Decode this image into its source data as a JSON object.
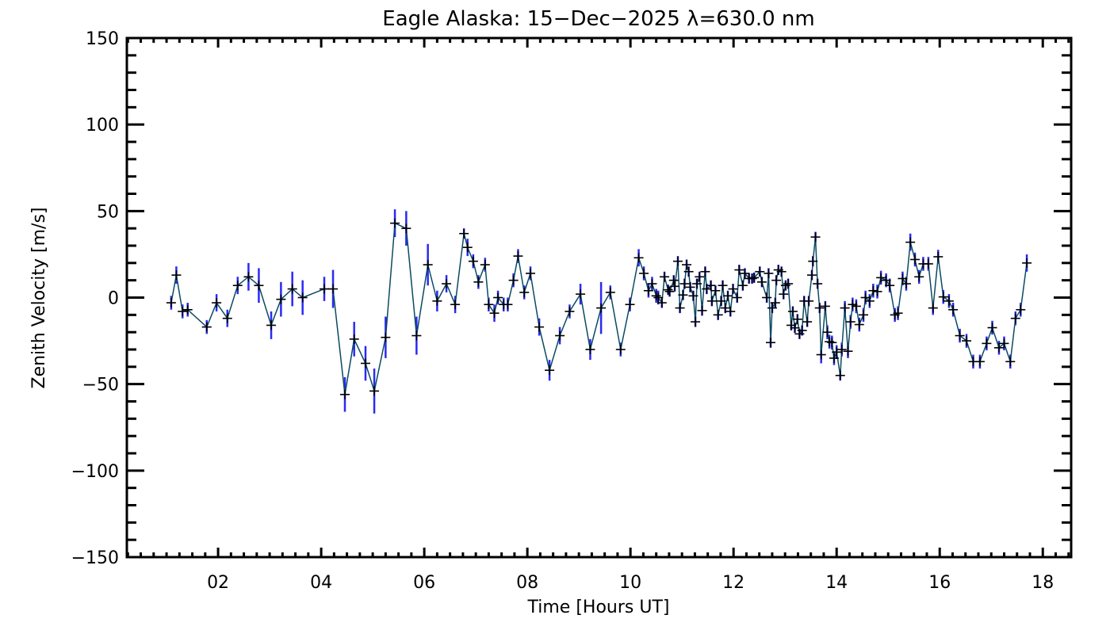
{
  "chart_data": {
    "type": "line",
    "title": "Eagle Alaska: 15−Dec−2025 λ=630.0 nm",
    "xlabel": "Time [Hours UT]",
    "ylabel": "Zenith Velocity [m/s]",
    "xlim": [
      0.23,
      18.55
    ],
    "ylim": [
      -150,
      150
    ],
    "x_ticks": [
      2,
      4,
      6,
      8,
      10,
      12,
      14,
      16,
      18
    ],
    "x_tick_labels": [
      "02",
      "04",
      "06",
      "08",
      "10",
      "12",
      "14",
      "16",
      "18"
    ],
    "x_minor_step": 0.25,
    "y_ticks": [
      -150,
      -100,
      -50,
      0,
      50,
      100,
      150
    ],
    "y_tick_labels": [
      "−150",
      "−100",
      "−50",
      "0",
      "50",
      "100",
      "150"
    ],
    "y_minor_step": 10,
    "grid": false,
    "colors": {
      "line": "#0b4a62",
      "errorbar": "#2a2af5",
      "marker": "#000000",
      "axis": "#000000"
    },
    "series": [
      {
        "name": "Zenith Velocity",
        "columns": [
          "time_h",
          "velocity_ms",
          "error_ms"
        ],
        "points": [
          [
            1.09,
            -3,
            4
          ],
          [
            1.19,
            13,
            5
          ],
          [
            1.31,
            -8,
            4
          ],
          [
            1.41,
            -7,
            4
          ],
          [
            1.78,
            -17,
            4
          ],
          [
            1.97,
            -3,
            5
          ],
          [
            2.18,
            -12,
            5
          ],
          [
            2.38,
            7,
            5
          ],
          [
            2.59,
            12,
            8
          ],
          [
            2.79,
            7,
            10
          ],
          [
            3.03,
            -16,
            8
          ],
          [
            3.22,
            -1,
            10
          ],
          [
            3.44,
            5,
            10
          ],
          [
            3.64,
            0,
            10
          ],
          [
            4.06,
            5,
            7
          ],
          [
            4.23,
            5,
            11
          ],
          [
            4.46,
            -56,
            10
          ],
          [
            4.64,
            -24,
            10
          ],
          [
            4.86,
            -38,
            10
          ],
          [
            5.03,
            -54,
            13
          ],
          [
            5.25,
            -23,
            12
          ],
          [
            5.43,
            43,
            8
          ],
          [
            5.65,
            40,
            10
          ],
          [
            5.85,
            -22,
            11
          ],
          [
            6.07,
            19,
            12
          ],
          [
            6.25,
            -2,
            6
          ],
          [
            6.43,
            8,
            5
          ],
          [
            6.6,
            -4,
            5
          ],
          [
            6.77,
            37,
            3
          ],
          [
            6.84,
            29,
            5
          ],
          [
            6.95,
            21,
            4
          ],
          [
            7.05,
            9,
            4
          ],
          [
            7.18,
            19,
            4
          ],
          [
            7.25,
            -4,
            4
          ],
          [
            7.36,
            -9,
            5
          ],
          [
            7.43,
            0,
            4
          ],
          [
            7.54,
            -4,
            4
          ],
          [
            7.62,
            -4,
            4
          ],
          [
            7.73,
            10,
            4
          ],
          [
            7.82,
            24,
            4
          ],
          [
            7.94,
            3,
            4
          ],
          [
            8.06,
            14,
            4
          ],
          [
            8.23,
            -17,
            5
          ],
          [
            8.43,
            -42,
            6
          ],
          [
            8.63,
            -22,
            5
          ],
          [
            8.82,
            -8,
            4
          ],
          [
            9.03,
            2,
            6
          ],
          [
            9.22,
            -30,
            6
          ],
          [
            9.43,
            -6,
            15
          ],
          [
            9.61,
            3,
            4
          ],
          [
            9.81,
            -30,
            4
          ],
          [
            9.99,
            -4,
            4
          ],
          [
            10.16,
            23,
            5
          ],
          [
            10.26,
            14,
            4
          ],
          [
            10.35,
            4,
            4
          ],
          [
            10.42,
            8,
            4
          ],
          [
            10.5,
            1,
            4
          ],
          [
            10.54,
            0,
            4
          ],
          [
            10.61,
            -3,
            3
          ],
          [
            10.66,
            12,
            3
          ],
          [
            10.73,
            4.5,
            3
          ],
          [
            10.76,
            3.5,
            3
          ],
          [
            10.84,
            10,
            3
          ],
          [
            10.86,
            6.5,
            3
          ],
          [
            10.92,
            21,
            3
          ],
          [
            10.96,
            -6,
            3
          ],
          [
            11.02,
            1.5,
            3
          ],
          [
            11.05,
            8,
            3
          ],
          [
            11.09,
            19,
            3
          ],
          [
            11.13,
            15,
            3
          ],
          [
            11.16,
            6,
            3
          ],
          [
            11.22,
            1,
            3
          ],
          [
            11.26,
            -14,
            3
          ],
          [
            11.29,
            8,
            3
          ],
          [
            11.34,
            12,
            3
          ],
          [
            11.39,
            -7.5,
            3
          ],
          [
            11.45,
            15,
            3
          ],
          [
            11.48,
            5,
            3
          ],
          [
            11.56,
            7,
            3
          ],
          [
            11.58,
            -2,
            3
          ],
          [
            11.65,
            4,
            3
          ],
          [
            11.7,
            -10,
            3
          ],
          [
            11.76,
            -2,
            3
          ],
          [
            11.79,
            7,
            3
          ],
          [
            11.84,
            -6,
            3
          ],
          [
            11.89,
            1,
            3
          ],
          [
            11.94,
            -8,
            3
          ],
          [
            11.99,
            5,
            3
          ],
          [
            12.07,
            0,
            3
          ],
          [
            12.11,
            16,
            3
          ],
          [
            12.18,
            7,
            3
          ],
          [
            12.22,
            14,
            3
          ],
          [
            12.3,
            11,
            3
          ],
          [
            12.36,
            11,
            3
          ],
          [
            12.4,
            11.5,
            3
          ],
          [
            12.51,
            15,
            3
          ],
          [
            12.55,
            9,
            3
          ],
          [
            12.645,
            0,
            3
          ],
          [
            12.68,
            14,
            3
          ],
          [
            12.72,
            -26,
            3
          ],
          [
            12.75,
            -6,
            3
          ],
          [
            12.81,
            -3,
            3
          ],
          [
            12.83,
            10,
            3
          ],
          [
            12.87,
            16,
            3
          ],
          [
            12.93,
            15,
            3
          ],
          [
            12.97,
            2,
            3
          ],
          [
            13.01,
            7,
            3
          ],
          [
            13.06,
            8,
            3
          ],
          [
            13.12,
            -16,
            3
          ],
          [
            13.15,
            -8,
            3
          ],
          [
            13.19,
            -17.5,
            3
          ],
          [
            13.24,
            -12.5,
            3
          ],
          [
            13.28,
            -21,
            3
          ],
          [
            13.33,
            -19,
            3
          ],
          [
            13.37,
            -2,
            3
          ],
          [
            13.43,
            -14,
            3
          ],
          [
            13.46,
            -2,
            3
          ],
          [
            13.52,
            13,
            3
          ],
          [
            13.54,
            21,
            3
          ],
          [
            13.59,
            35,
            3
          ],
          [
            13.63,
            8,
            3
          ],
          [
            13.67,
            -6,
            3
          ],
          [
            13.7,
            -33,
            5
          ],
          [
            13.78,
            -5,
            3
          ],
          [
            13.82,
            -20,
            4
          ],
          [
            13.86,
            -25.5,
            4
          ],
          [
            13.91,
            -26,
            4
          ],
          [
            13.95,
            -35,
            4
          ],
          [
            14.0,
            -31.5,
            4
          ],
          [
            14.07,
            -45,
            3
          ],
          [
            14.1,
            -30,
            4
          ],
          [
            14.16,
            -6,
            4
          ],
          [
            14.22,
            -31,
            4
          ],
          [
            14.27,
            -14,
            4
          ],
          [
            14.31,
            -4,
            4
          ],
          [
            14.38,
            -5,
            4
          ],
          [
            14.44,
            -15.6,
            4
          ],
          [
            14.52,
            -10,
            4
          ],
          [
            14.56,
            0,
            4
          ],
          [
            14.64,
            -2,
            4
          ],
          [
            14.71,
            4,
            4
          ],
          [
            14.79,
            3.5,
            4
          ],
          [
            14.86,
            11.5,
            4
          ],
          [
            14.96,
            10,
            4
          ],
          [
            15.03,
            7,
            4
          ],
          [
            15.13,
            -10,
            4
          ],
          [
            15.19,
            -9,
            4
          ],
          [
            15.28,
            11,
            4
          ],
          [
            15.35,
            8,
            4
          ],
          [
            15.43,
            32,
            5
          ],
          [
            15.52,
            22,
            4
          ],
          [
            15.6,
            12,
            4
          ],
          [
            15.68,
            19.5,
            4
          ],
          [
            15.78,
            19.5,
            4
          ],
          [
            15.87,
            -6,
            4
          ],
          [
            15.97,
            23.6,
            4
          ],
          [
            16.07,
            0.4,
            4
          ],
          [
            16.18,
            -2,
            4
          ],
          [
            16.26,
            -7,
            4
          ],
          [
            16.39,
            -22,
            4
          ],
          [
            16.52,
            -25,
            4
          ],
          [
            16.65,
            -37,
            4
          ],
          [
            16.78,
            -37,
            4
          ],
          [
            16.91,
            -26.5,
            4
          ],
          [
            17.02,
            -17.4,
            4
          ],
          [
            17.15,
            -29,
            4
          ],
          [
            17.25,
            -26.5,
            4
          ],
          [
            17.37,
            -37,
            4
          ],
          [
            17.47,
            -12,
            4
          ],
          [
            17.57,
            -7,
            4
          ],
          [
            17.69,
            20,
            5
          ]
        ]
      }
    ]
  }
}
